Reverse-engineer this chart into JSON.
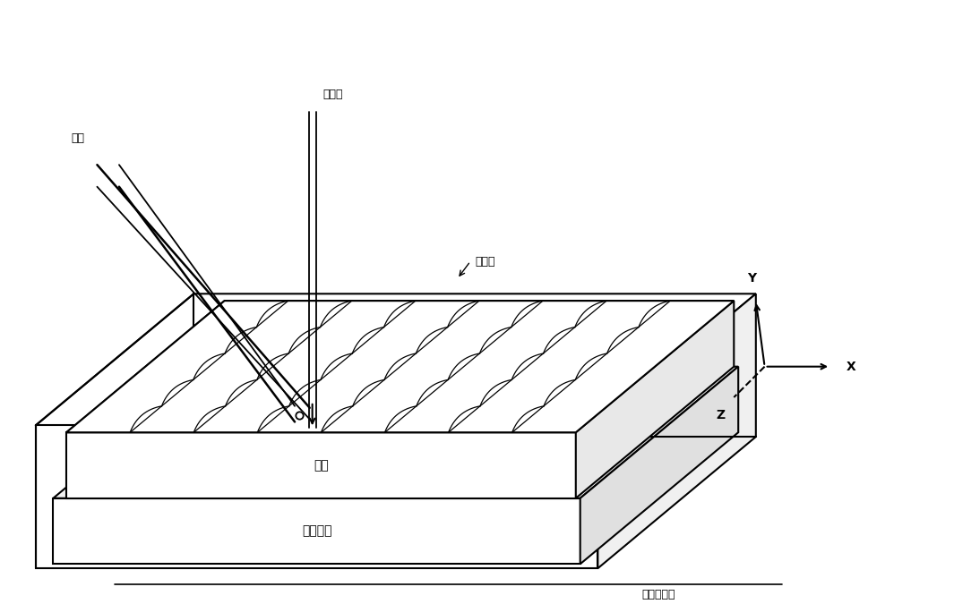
{
  "bg_color": "#ffffff",
  "line_color": "#000000",
  "label_laser": "激光束",
  "label_spray": "喘嘴",
  "label_melt": "燕烧区",
  "label_substrate": "基体",
  "label_cooling": "冷却底层",
  "label_table": "激光工作台",
  "label_Y": "Y",
  "label_Z": "Z",
  "label_X": "X",
  "figsize": [
    10.65,
    6.75
  ],
  "dpi": 100
}
